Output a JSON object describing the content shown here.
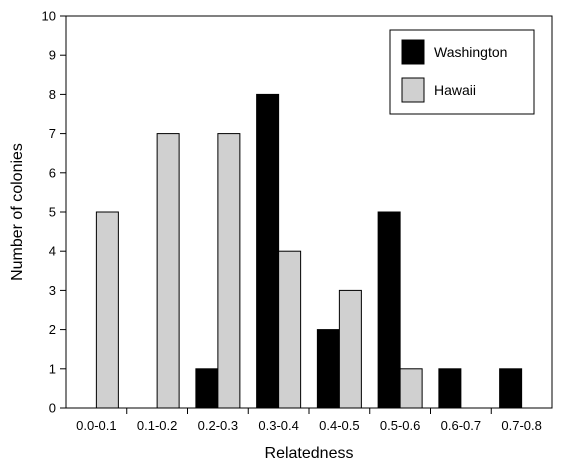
{
  "chart_data": {
    "type": "bar",
    "categories": [
      "0.0-0.1",
      "0.1-0.2",
      "0.2-0.3",
      "0.3-0.4",
      "0.4-0.5",
      "0.5-0.6",
      "0.6-0.7",
      "0.7-0.8"
    ],
    "series": [
      {
        "name": "Washington",
        "color": "#000000",
        "values": [
          0,
          0,
          1,
          8,
          2,
          5,
          1,
          1
        ]
      },
      {
        "name": "Hawaii",
        "color": "#d0d0d0",
        "values": [
          5,
          7,
          7,
          4,
          3,
          1,
          0,
          0
        ]
      }
    ],
    "xlabel": "Relatedness",
    "ylabel": "Number of colonies",
    "ylim": [
      0,
      10
    ],
    "yticks": [
      0,
      1,
      2,
      3,
      4,
      5,
      6,
      7,
      8,
      9,
      10
    ],
    "grid": false,
    "legend_position": "top-right"
  }
}
